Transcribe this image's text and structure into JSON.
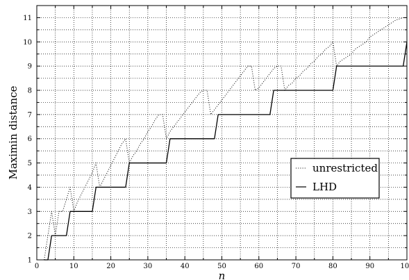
{
  "chart_data": {
    "type": "line",
    "title": "",
    "xlabel": "n",
    "ylabel": "Maximin distance",
    "xlim": [
      0,
      100
    ],
    "ylim": [
      1,
      11.5
    ],
    "xticks": [
      0,
      10,
      20,
      30,
      40,
      50,
      60,
      70,
      80,
      90,
      100
    ],
    "yticks": [
      1,
      2,
      3,
      4,
      5,
      6,
      7,
      8,
      9,
      10,
      11
    ],
    "grid": true,
    "legend_position": "center-right",
    "series": [
      {
        "name": "unrestricted",
        "style": "dotted",
        "color": "#000000",
        "x": [
          2,
          3,
          4,
          5,
          6,
          7,
          8,
          9,
          10,
          11,
          12,
          13,
          14,
          15,
          16,
          17,
          18,
          19,
          20,
          21,
          22,
          23,
          24,
          25,
          26,
          27,
          28,
          29,
          30,
          31,
          32,
          33,
          34,
          35,
          36,
          37,
          38,
          39,
          40,
          41,
          42,
          43,
          44,
          45,
          46,
          47,
          48,
          49,
          50,
          51,
          52,
          53,
          54,
          55,
          56,
          57,
          58,
          59,
          60,
          61,
          62,
          63,
          64,
          65,
          66,
          67,
          68,
          69,
          70,
          71,
          72,
          73,
          74,
          75,
          76,
          77,
          78,
          79,
          80,
          81,
          82,
          83,
          84,
          85,
          86,
          87,
          88,
          89,
          90,
          91,
          92,
          93,
          94,
          95,
          96,
          97,
          98,
          99,
          100
        ],
        "y": [
          1.0,
          2.0,
          3.0,
          2.0,
          3.0,
          3.0,
          3.5,
          4.0,
          3.0,
          3.4,
          3.7,
          4.0,
          4.3,
          4.6,
          5.0,
          4.0,
          4.3,
          4.6,
          4.9,
          5.2,
          5.5,
          5.8,
          6.0,
          5.0,
          5.3,
          5.5,
          5.8,
          6.0,
          6.3,
          6.5,
          6.8,
          7.0,
          7.0,
          6.0,
          6.3,
          6.5,
          6.7,
          6.9,
          7.1,
          7.3,
          7.5,
          7.7,
          7.9,
          8.0,
          8.0,
          7.0,
          7.2,
          7.4,
          7.6,
          7.8,
          8.0,
          8.2,
          8.4,
          8.6,
          8.8,
          9.0,
          9.0,
          8.0,
          8.1,
          8.3,
          8.5,
          8.7,
          8.9,
          9.0,
          9.0,
          8.0,
          8.2,
          8.3,
          8.5,
          8.6,
          8.8,
          8.9,
          9.1,
          9.2,
          9.4,
          9.5,
          9.7,
          9.8,
          10.0,
          9.0,
          9.2,
          9.3,
          9.4,
          9.5,
          9.7,
          9.8,
          9.9,
          10.0,
          10.2,
          10.3,
          10.4,
          10.5,
          10.6,
          10.7,
          10.8,
          10.9,
          10.95,
          11.0,
          11.0
        ]
      },
      {
        "name": "LHD",
        "style": "solid",
        "color": "#000000",
        "x": [
          2,
          3,
          4,
          8,
          9,
          15,
          16,
          24,
          25,
          35,
          36,
          48,
          49,
          63,
          64,
          80,
          81,
          99,
          100
        ],
        "y": [
          1,
          1,
          2,
          2,
          3,
          3,
          4,
          4,
          5,
          5,
          6,
          6,
          7,
          7,
          8,
          8,
          9,
          9,
          10
        ]
      }
    ]
  }
}
